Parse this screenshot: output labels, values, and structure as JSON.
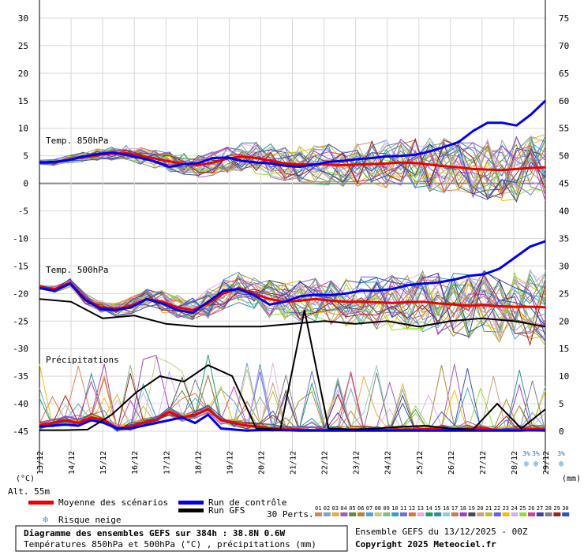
{
  "chart_data": {
    "type": "line",
    "title": "Diagramme des ensembles GEFS sur 384h : 38.8N 0.6W",
    "subtitle": "Températures 850hPa et 500hPa (°C) , précipitations (mm)",
    "left_unit": "(°C)",
    "right_unit": "(mm)",
    "altitude_label": "Alt. 55m",
    "ylim_left": [
      -45,
      30
    ],
    "yticks_left": [
      "30",
      "25",
      "20",
      "15",
      "10",
      "5",
      "0",
      "-5",
      "-10",
      "-15",
      "-20",
      "-25",
      "-30",
      "-35",
      "-40",
      "-45"
    ],
    "yticks_right": [
      "75",
      "70",
      "65",
      "60",
      "55",
      "50",
      "45",
      "40",
      "35",
      "30",
      "25",
      "20",
      "15",
      "10",
      "5",
      "0"
    ],
    "xticks": [
      "13/12",
      "14/12",
      "15/12",
      "16/12",
      "17/12",
      "18/12",
      "19/12",
      "20/12",
      "21/12",
      "22/12",
      "23/12",
      "24/12",
      "25/12",
      "26/12",
      "27/12",
      "28/12",
      "29/12"
    ],
    "panel_labels": {
      "t850": "Temp. 850hPa",
      "t500": "Temp. 500hPa",
      "precip": "Précipitations"
    },
    "snow_risk": [
      {
        "day": 15.4,
        "label": "3%"
      },
      {
        "day": 15.7,
        "label": "3%"
      },
      {
        "day": 16.5,
        "label": "3%"
      }
    ],
    "members": [
      "01",
      "02",
      "03",
      "04",
      "05",
      "06",
      "07",
      "08",
      "09",
      "10",
      "11",
      "12",
      "13",
      "14",
      "15",
      "16",
      "17",
      "18",
      "19",
      "20",
      "21",
      "22",
      "23",
      "24",
      "25",
      "26",
      "27",
      "28",
      "29",
      "30"
    ],
    "member_colors": [
      "#d4884a",
      "#7fa4c4",
      "#e0b040",
      "#9f5fbf",
      "#6a8a3a",
      "#b08830",
      "#4fa0e0",
      "#c8c880",
      "#7fbf7f",
      "#3a9fbf",
      "#6f6fcf",
      "#e07040",
      "#e0b0e0",
      "#1f9f5f",
      "#2f8f9f",
      "#8fcfcf",
      "#bf7f4f",
      "#9f3fcf",
      "#4a4a4a",
      "#c8a080",
      "#bfbf2f",
      "#5f5fff",
      "#f0c000",
      "#d0b0ff",
      "#8fdf2f",
      "#cf3f9f",
      "#3f3f9f",
      "#7f7f7f",
      "#9f1f1f",
      "#2f4fbf"
    ],
    "series": [
      {
        "name": "Moyenne des scénarios",
        "color": "#ee0000",
        "t850": [
          3.8,
          3.8,
          4.3,
          4.8,
          5.2,
          5.4,
          5.5,
          5.0,
          4.5,
          4.0,
          3.5,
          3.3,
          3.8,
          4.5,
          4.9,
          4.6,
          4.1,
          3.6,
          3.4,
          3.5,
          3.4,
          3.3,
          3.4,
          3.5,
          3.6,
          3.8,
          3.7,
          3.4,
          3.1,
          2.9,
          2.6,
          2.5,
          2.4,
          2.6,
          2.8,
          2.9
        ],
        "t500": [
          -18.8,
          -19.2,
          -18.0,
          -21.0,
          -22.5,
          -22.8,
          -22.2,
          -21.0,
          -21.5,
          -22.5,
          -23.0,
          -21.8,
          -20.0,
          -19.0,
          -20.0,
          -21.0,
          -21.5,
          -21.3,
          -21.0,
          -21.3,
          -21.5,
          -21.5,
          -21.6,
          -21.7,
          -21.6,
          -21.5,
          -21.8,
          -22.0,
          -22.2,
          -22.1,
          -22.3,
          -22.4,
          -22.4,
          -22.5
        ],
        "precip": [
          1.0,
          1.5,
          2.0,
          1.5,
          2.5,
          2.0,
          0.5,
          0.8,
          1.5,
          2.0,
          3.5,
          2.5,
          3.0,
          4.0,
          2.0,
          1.5,
          1.0,
          0.8,
          0.5,
          0.3,
          0.3,
          0.2,
          0.2,
          0.3,
          0.3,
          0.3,
          0.3,
          0.2,
          0.3,
          0.3,
          0.4,
          0.5,
          0.4,
          0.4,
          0.5,
          0.3,
          0.2,
          0.3,
          0.4,
          0.3
        ]
      },
      {
        "name": "Run de contrôle",
        "color": "#0000ee",
        "t850": [
          3.8,
          3.9,
          4.2,
          4.9,
          5.3,
          5.6,
          5.2,
          4.6,
          4.0,
          3.0,
          3.5,
          3.7,
          4.6,
          4.7,
          4.1,
          3.8,
          3.6,
          3.2,
          3.0,
          3.4,
          3.9,
          4.1,
          4.4,
          4.6,
          4.9,
          5.0,
          5.2,
          5.8,
          6.6,
          7.5,
          9.5,
          11.0,
          11.0,
          10.5,
          12.5,
          15.0
        ],
        "t500": [
          -19.0,
          -19.5,
          -18.2,
          -21.2,
          -22.8,
          -23.0,
          -22.5,
          -21.0,
          -21.8,
          -23.0,
          -23.5,
          -21.5,
          -19.5,
          -19.2,
          -20.3,
          -22.0,
          -21.5,
          -20.5,
          -20.2,
          -20.3,
          -20.0,
          -19.5,
          -19.5,
          -19.2,
          -18.5,
          -18.2,
          -18.0,
          -17.5,
          -16.8,
          -16.5,
          -15.5,
          -13.5,
          -11.5,
          -10.5
        ],
        "precip": [
          0.8,
          1.0,
          1.2,
          1.0,
          2.0,
          1.5,
          0.5,
          0.5,
          1.0,
          1.5,
          2.0,
          2.5,
          1.5,
          3.0,
          0.5,
          0.3,
          0.1,
          0.2,
          0.2,
          0.2,
          0.1,
          0.1,
          0.1,
          0.1,
          0.1,
          0.1,
          0.1,
          0.1,
          0.1,
          0.1,
          0.1,
          0.1,
          0.1,
          0.1,
          0.1,
          0.1,
          0.1,
          0.1,
          0.2,
          0.1
        ]
      },
      {
        "name": "Run GFS",
        "color": "#000000",
        "t500": [
          -21.0,
          -21.5,
          -24.5,
          -24.0,
          -25.5,
          -26.0,
          -26.0,
          -26.0,
          -25.5,
          -25.0,
          -25.5,
          -25.0,
          -26.0,
          -25.0,
          -24.5,
          -25.0,
          -26.0
        ],
        "precip": [
          0.2,
          0.2,
          0.3,
          3.0,
          7.0,
          10.0,
          9.0,
          12.0,
          10.0,
          0.5,
          0.3,
          22.0,
          0.5,
          0.3,
          0.5,
          0.8,
          1.0,
          0.5,
          0.3,
          5.0,
          0.5,
          4.0
        ]
      }
    ]
  },
  "legend": {
    "mean_label": "Moyenne des scénarios",
    "control_label": "Run de contrôle",
    "gfs_label": "Run GFS",
    "snow_label": "Risque neige",
    "perts_label": "30 Perts."
  },
  "footer": {
    "title": "Diagramme des ensembles GEFS sur 384h : 38.8N 0.6W",
    "subtitle": "Températures 850hPa et 500hPa (°C) , précipitations (mm)",
    "run_label": "Ensemble GEFS du 13/12/2025 - 00Z",
    "copyright": "Copyright 2025 Meteociel.fr"
  }
}
